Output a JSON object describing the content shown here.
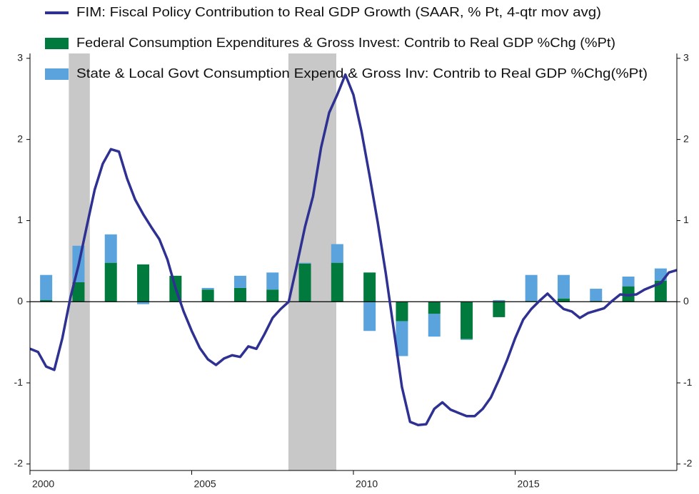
{
  "chart_data": {
    "type": "combo",
    "legend": "top",
    "xlim": [
      2000,
      2020
    ],
    "xticks": [
      2000,
      2005,
      2010,
      2015
    ],
    "ylim": [
      -2.08,
      3.06
    ],
    "yticks": [
      3,
      2,
      1,
      0,
      -1,
      -2
    ],
    "y2lim": [
      -2.08,
      3.06
    ],
    "y2ticks": [
      3,
      2,
      1,
      0,
      -1,
      -2
    ],
    "recessions": [
      [
        2001.2,
        2001.85
      ],
      [
        2007.99,
        2009.47
      ]
    ],
    "recession_color": "#c8c8c8",
    "series": [
      {
        "name": "FIM: Fiscal Policy Contribution to Real GDP Growth (SAAR, % Pt, 4-qtr mov avg)",
        "type": "line",
        "color": "#2e3192",
        "x": [
          2000,
          2000.25,
          2000.5,
          2000.75,
          2001,
          2001.25,
          2001.5,
          2001.75,
          2002,
          2002.25,
          2002.5,
          2002.75,
          2003,
          2003.25,
          2003.5,
          2003.75,
          2004,
          2004.25,
          2004.5,
          2004.75,
          2005,
          2005.25,
          2005.5,
          2005.75,
          2006,
          2006.25,
          2006.5,
          2006.75,
          2007,
          2007.25,
          2007.5,
          2007.75,
          2008,
          2008.25,
          2008.5,
          2008.75,
          2009,
          2009.25,
          2009.5,
          2009.75,
          2010,
          2010.25,
          2010.5,
          2010.75,
          2011,
          2011.25,
          2011.5,
          2011.75,
          2012,
          2012.25,
          2012.5,
          2012.75,
          2013,
          2013.25,
          2013.5,
          2013.75,
          2014,
          2014.25,
          2014.5,
          2014.75,
          2015,
          2015.25,
          2015.5,
          2015.75,
          2016,
          2016.25,
          2016.5,
          2016.75,
          2017,
          2017.25,
          2017.5,
          2017.75,
          2018,
          2018.25,
          2018.5,
          2018.75,
          2019,
          2019.25,
          2019.5,
          2019.75,
          2020
        ],
        "values": [
          -0.58,
          -0.62,
          -0.8,
          -0.84,
          -0.45,
          0.05,
          0.45,
          0.92,
          1.38,
          1.7,
          1.88,
          1.85,
          1.52,
          1.26,
          1.08,
          0.92,
          0.77,
          0.52,
          0.17,
          -0.12,
          -0.36,
          -0.57,
          -0.71,
          -0.78,
          -0.7,
          -0.66,
          -0.68,
          -0.55,
          -0.58,
          -0.4,
          -0.2,
          -0.09,
          0.0,
          0.45,
          0.92,
          1.3,
          1.9,
          2.33,
          2.55,
          2.8,
          2.55,
          2.1,
          1.55,
          0.98,
          0.35,
          -0.35,
          -1.05,
          -1.48,
          -1.52,
          -1.51,
          -1.32,
          -1.24,
          -1.33,
          -1.37,
          -1.41,
          -1.41,
          -1.32,
          -1.18,
          -0.96,
          -0.72,
          -0.45,
          -0.22,
          -0.09,
          0.01,
          0.1,
          0.0,
          -0.09,
          -0.12,
          -0.2,
          -0.14,
          -0.11,
          -0.08,
          0.01,
          0.09,
          0.08,
          0.09,
          0.15,
          0.19,
          0.23,
          0.36,
          0.39
        ]
      },
      {
        "name": "Federal Consumption Expenditures & Gross Invest: Contrib to Real GDP %Chg (%Pt)",
        "type": "bar",
        "color": "#007a3d",
        "x": [
          2000,
          2001,
          2002,
          2003,
          2004,
          2005,
          2006,
          2007,
          2008,
          2009,
          2010,
          2011,
          2012,
          2013,
          2014,
          2015,
          2016,
          2017,
          2018,
          2019
        ],
        "values": [
          0.02,
          0.24,
          0.48,
          0.46,
          0.32,
          0.15,
          0.17,
          0.15,
          0.47,
          0.48,
          0.36,
          -0.24,
          -0.15,
          -0.46,
          -0.19,
          0.01,
          0.04,
          0.01,
          0.19,
          0.26
        ]
      },
      {
        "name": "State & Local Govt Consumption Expend & Gross Inv: Contrib to Real GDP %Chg(%Pt)",
        "type": "bar",
        "color": "#5ba3dc",
        "x": [
          2000,
          2001,
          2002,
          2003,
          2004,
          2005,
          2006,
          2007,
          2008,
          2009,
          2010,
          2011,
          2012,
          2013,
          2014,
          2015,
          2016,
          2017,
          2018,
          2019
        ],
        "values": [
          0.31,
          0.45,
          0.35,
          -0.03,
          0.0,
          0.02,
          0.15,
          0.21,
          0.01,
          0.23,
          -0.36,
          -0.43,
          -0.28,
          -0.01,
          0.02,
          0.32,
          0.29,
          0.15,
          0.12,
          0.15
        ]
      }
    ]
  }
}
